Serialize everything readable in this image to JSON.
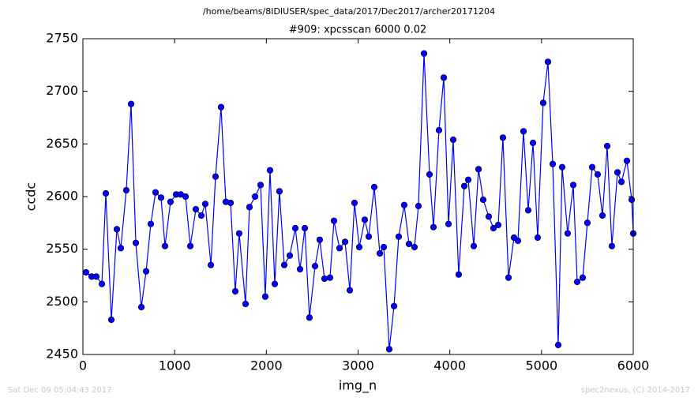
{
  "chart_data": {
    "type": "line",
    "suptitle": "/home/beams/8IDIUSER/spec_data/2017/Dec2017/archer20171204",
    "title": "#909: xpcsscan 6000 0.02",
    "xlabel": "img_n",
    "ylabel": "ccdc",
    "xlim": [
      0,
      6000
    ],
    "ylim": [
      2450,
      2750
    ],
    "xticks": [
      0,
      1000,
      2000,
      3000,
      4000,
      5000,
      6000
    ],
    "yticks": [
      2450,
      2500,
      2550,
      2600,
      2650,
      2700,
      2750
    ],
    "series": [
      {
        "name": "ccdc",
        "color": "#0000ff",
        "x": [
          34,
          95,
          146,
          207,
          250,
          310,
          370,
          413,
          473,
          525,
          577,
          637,
          689,
          740,
          792,
          852,
          895,
          955,
          1016,
          1067,
          1119,
          1171,
          1231,
          1291,
          1334,
          1395,
          1446,
          1506,
          1558,
          1610,
          1661,
          1704,
          1773,
          1816,
          1877,
          1937,
          1988,
          2040,
          2092,
          2143,
          2195,
          2255,
          2316,
          2367,
          2419,
          2470,
          2531,
          2582,
          2634,
          2694,
          2737,
          2798,
          2858,
          2910,
          2961,
          3013,
          3073,
          3116,
          3176,
          3237,
          3280,
          3340,
          3392,
          3443,
          3503,
          3555,
          3615,
          3658,
          3719,
          3779,
          3822,
          3882,
          3934,
          3986,
          4037,
          4097,
          4158,
          4201,
          4261,
          4313,
          4364,
          4425,
          4476,
          4528,
          4579,
          4640,
          4700,
          4743,
          4803,
          4855,
          4907,
          4958,
          5018,
          5070,
          5122,
          5182,
          5225,
          5285,
          5346,
          5389,
          5449,
          5500,
          5552,
          5612,
          5664,
          5716,
          5767,
          5828,
          5871,
          5931,
          5983,
          6000
        ],
        "values": [
          2528,
          2524,
          2524,
          2517,
          2603,
          2483,
          2569,
          2551,
          2606,
          2688,
          2556,
          2495,
          2529,
          2574,
          2604,
          2599,
          2553,
          2595,
          2602,
          2602,
          2600,
          2553,
          2588,
          2582,
          2593,
          2535,
          2619,
          2685,
          2595,
          2594,
          2510,
          2565,
          2498,
          2590,
          2600,
          2611,
          2505,
          2625,
          2517,
          2605,
          2535,
          2544,
          2570,
          2531,
          2570,
          2485,
          2534,
          2559,
          2522,
          2523,
          2577,
          2551,
          2557,
          2511,
          2594,
          2552,
          2578,
          2562,
          2609,
          2546,
          2552,
          2455,
          2496,
          2562,
          2592,
          2555,
          2552,
          2591,
          2736,
          2621,
          2571,
          2663,
          2713,
          2574,
          2654,
          2526,
          2610,
          2616,
          2553,
          2626,
          2597,
          2581,
          2570,
          2573,
          2656,
          2523,
          2561,
          2558,
          2662,
          2587,
          2651,
          2561,
          2689,
          2728,
          2631,
          2459,
          2628,
          2565,
          2611,
          2519,
          2523,
          2575,
          2628,
          2621,
          2582,
          2648,
          2553,
          2623,
          2614,
          2634,
          2597,
          2565
        ]
      }
    ]
  },
  "footer": {
    "left": "Sat Dec 09 05:04:43 2017",
    "right": "spec2nexus, (C) 2014-2017"
  }
}
